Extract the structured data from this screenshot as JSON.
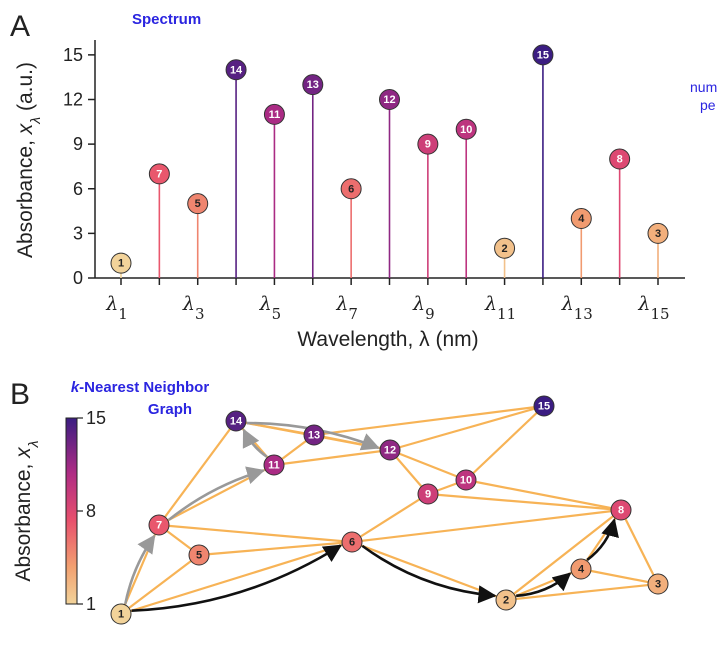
{
  "panels": {
    "a": {
      "letter": "A",
      "title": "Spectrum"
    },
    "b": {
      "letter": "B",
      "title_prefix": "k",
      "title_rest": "-Nearest Neighbor",
      "title_line2": "Graph"
    }
  },
  "side_note": {
    "line1": "num",
    "line2": "pe"
  },
  "colors": {
    "low": "#f2d39a",
    "mid": "#e8506d",
    "high": "#3b1d82",
    "edge": "#f7b356",
    "path_gray": "#999999",
    "path_black": "#111111"
  },
  "chart_data": [
    {
      "type": "bar",
      "style": "lollipop",
      "xlabel": "Wavelength, λ (nm)",
      "ylabel": "Absorbance, x_λ (a.u.)",
      "ylim": [
        0,
        16
      ],
      "yticks": [
        "0",
        "3",
        "6",
        "9",
        "12",
        "15"
      ],
      "xtick_labels": [
        {
          "base": "λ",
          "sub": "1",
          "at": 1
        },
        {
          "base": "λ",
          "sub": "3",
          "at": 3
        },
        {
          "base": "λ",
          "sub": "5",
          "at": 5
        },
        {
          "base": "λ",
          "sub": "7",
          "at": 7
        },
        {
          "base": "λ",
          "sub": "9",
          "at": 9
        },
        {
          "base": "λ",
          "sub": "11",
          "at": 11
        },
        {
          "base": "λ",
          "sub": "13",
          "at": 13
        },
        {
          "base": "λ",
          "sub": "15",
          "at": 15
        }
      ],
      "categories": [
        1,
        2,
        3,
        4,
        5,
        6,
        7,
        8,
        9,
        10,
        11,
        12,
        13,
        14,
        15
      ],
      "values": [
        1,
        7,
        5,
        14,
        11,
        13,
        6,
        12,
        9,
        10,
        2,
        15,
        4,
        8,
        3
      ],
      "grid": false
    },
    {
      "type": "graph",
      "colorbar": {
        "label": "Absorbance, x_λ",
        "ticks": [
          "1",
          "8",
          "15"
        ],
        "range": [
          1,
          15
        ]
      },
      "nodes": [
        {
          "id": "1",
          "value": 1
        },
        {
          "id": "2",
          "value": 2
        },
        {
          "id": "3",
          "value": 3
        },
        {
          "id": "4",
          "value": 4
        },
        {
          "id": "5",
          "value": 5
        },
        {
          "id": "6",
          "value": 6
        },
        {
          "id": "7",
          "value": 7
        },
        {
          "id": "8",
          "value": 8
        },
        {
          "id": "9",
          "value": 9
        },
        {
          "id": "10",
          "value": 10
        },
        {
          "id": "11",
          "value": 11
        },
        {
          "id": "12",
          "value": 12
        },
        {
          "id": "13",
          "value": 13
        },
        {
          "id": "14",
          "value": 14
        },
        {
          "id": "15",
          "value": 15
        }
      ],
      "edges": [
        [
          "1",
          "7"
        ],
        [
          "1",
          "5"
        ],
        [
          "1",
          "6"
        ],
        [
          "7",
          "5"
        ],
        [
          "7",
          "6"
        ],
        [
          "7",
          "11"
        ],
        [
          "7",
          "14"
        ],
        [
          "5",
          "6"
        ],
        [
          "6",
          "9"
        ],
        [
          "6",
          "8"
        ],
        [
          "6",
          "2"
        ],
        [
          "2",
          "4"
        ],
        [
          "2",
          "3"
        ],
        [
          "2",
          "8"
        ],
        [
          "4",
          "8"
        ],
        [
          "4",
          "3"
        ],
        [
          "8",
          "3"
        ],
        [
          "9",
          "10"
        ],
        [
          "9",
          "12"
        ],
        [
          "9",
          "8"
        ],
        [
          "10",
          "12"
        ],
        [
          "10",
          "15"
        ],
        [
          "10",
          "8"
        ],
        [
          "12",
          "15"
        ],
        [
          "12",
          "13"
        ],
        [
          "12",
          "14"
        ],
        [
          "12",
          "11"
        ],
        [
          "13",
          "14"
        ],
        [
          "13",
          "11"
        ],
        [
          "13",
          "15"
        ],
        [
          "11",
          "14"
        ]
      ],
      "paths": [
        {
          "color": "gray",
          "nodes": [
            "1",
            "7",
            "11",
            "14",
            "12"
          ]
        },
        {
          "color": "black",
          "nodes": [
            "1",
            "6",
            "2",
            "4",
            "8"
          ]
        }
      ]
    }
  ]
}
